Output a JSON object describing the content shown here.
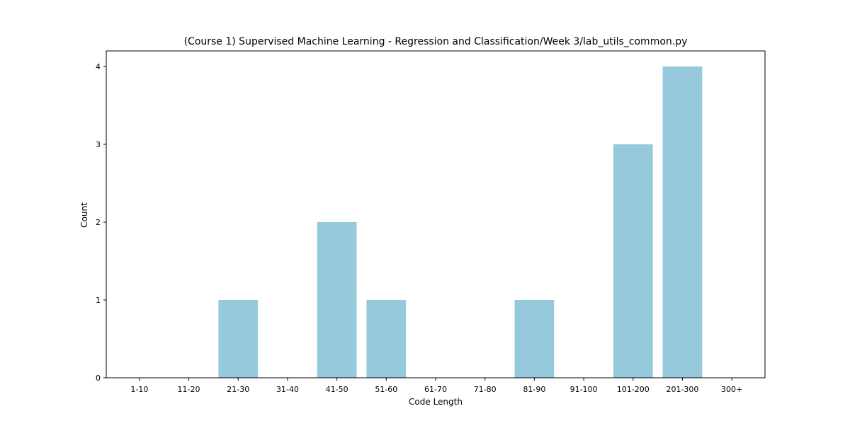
{
  "chart_data": {
    "type": "bar",
    "title": "(Course 1) Supervised Machine Learning - Regression and Classification/Week 3/lab_utils_common.py",
    "xlabel": "Code Length",
    "ylabel": "Count",
    "categories": [
      "1-10",
      "11-20",
      "21-30",
      "31-40",
      "41-50",
      "51-60",
      "61-70",
      "71-80",
      "81-90",
      "91-100",
      "101-200",
      "201-300",
      "300+"
    ],
    "values": [
      0,
      0,
      1,
      0,
      2,
      1,
      0,
      0,
      1,
      0,
      3,
      4,
      0
    ],
    "ylim": [
      0,
      4.2
    ],
    "yticks": [
      "0",
      "1",
      "2",
      "3",
      "4"
    ],
    "bar_color": "#96c9dc",
    "grid": false,
    "legend": "none"
  }
}
